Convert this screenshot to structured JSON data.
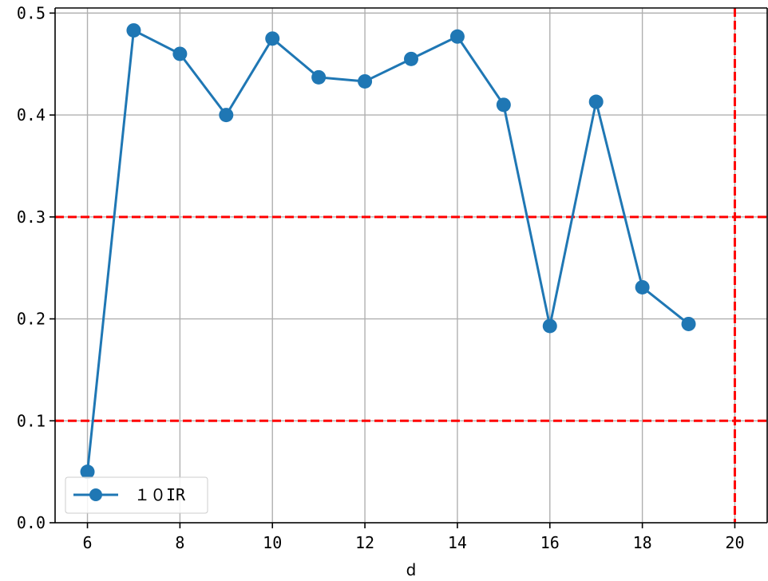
{
  "chart_data": {
    "type": "line",
    "title": "",
    "xlabel": "d",
    "ylabel": "",
    "xlim": [
      5.3,
      20.7
    ],
    "ylim": [
      0.0,
      0.505
    ],
    "x_ticks": [
      6,
      8,
      10,
      12,
      14,
      16,
      18,
      20
    ],
    "x_tick_labels": [
      "6",
      "8",
      "10",
      "12",
      "14",
      "16",
      "18",
      "20"
    ],
    "y_ticks": [
      0.0,
      0.1,
      0.2,
      0.3,
      0.4,
      0.5
    ],
    "y_tick_labels": [
      "0.0",
      "0.1",
      "0.2",
      "0.3",
      "0.4",
      "0.5"
    ],
    "grid": true,
    "legend_position": "lower-left",
    "series": [
      {
        "name": "１０IR",
        "color": "#1f77b4",
        "marker": "circle",
        "x": [
          6,
          7,
          8,
          9,
          10,
          11,
          12,
          13,
          14,
          15,
          16,
          17,
          18,
          19
        ],
        "y": [
          0.05,
          0.483,
          0.46,
          0.4,
          0.475,
          0.437,
          0.433,
          0.455,
          0.477,
          0.41,
          0.193,
          0.413,
          0.231,
          0.195
        ]
      }
    ],
    "reference_lines": {
      "color": "#ff0000",
      "style": "dashed",
      "horizontal": [
        0.1,
        0.3
      ],
      "vertical": [
        20
      ]
    }
  }
}
